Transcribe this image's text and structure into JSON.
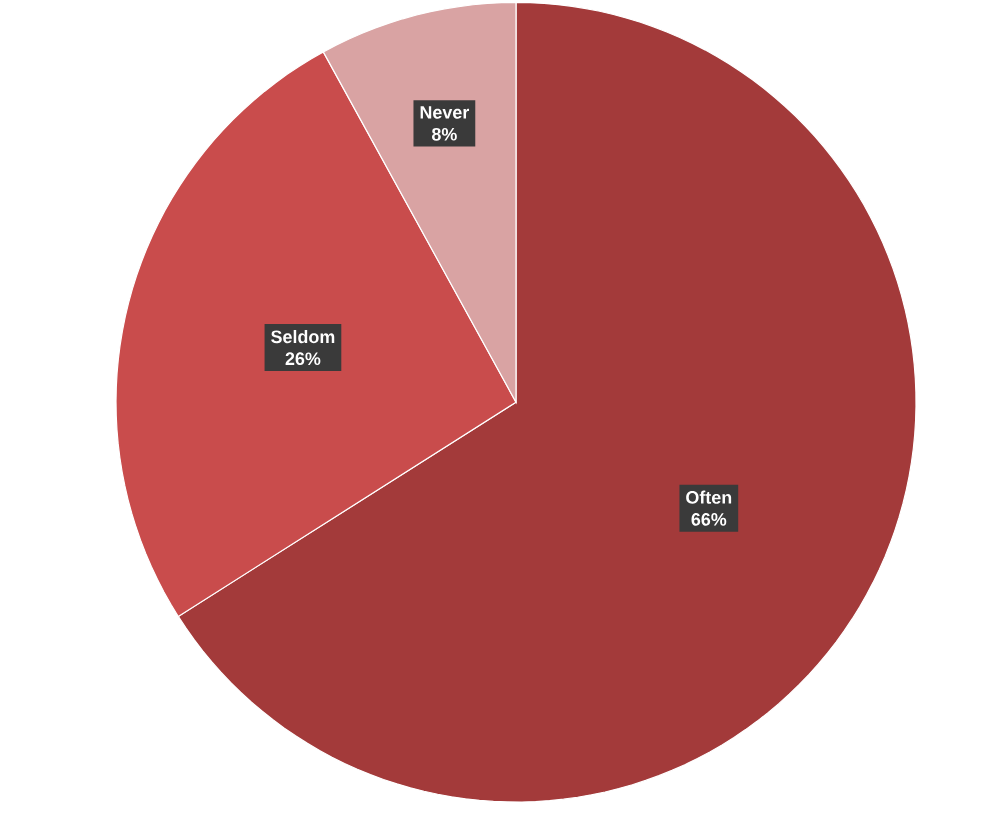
{
  "chart_data": {
    "type": "pie",
    "categories": [
      "Often",
      "Seldom",
      "Never"
    ],
    "values": [
      66,
      26,
      8
    ],
    "value_labels": [
      "66%",
      "26%",
      "8%"
    ],
    "colors": [
      "#a33a3a",
      "#c94c4c",
      "#d9a3a3"
    ]
  }
}
